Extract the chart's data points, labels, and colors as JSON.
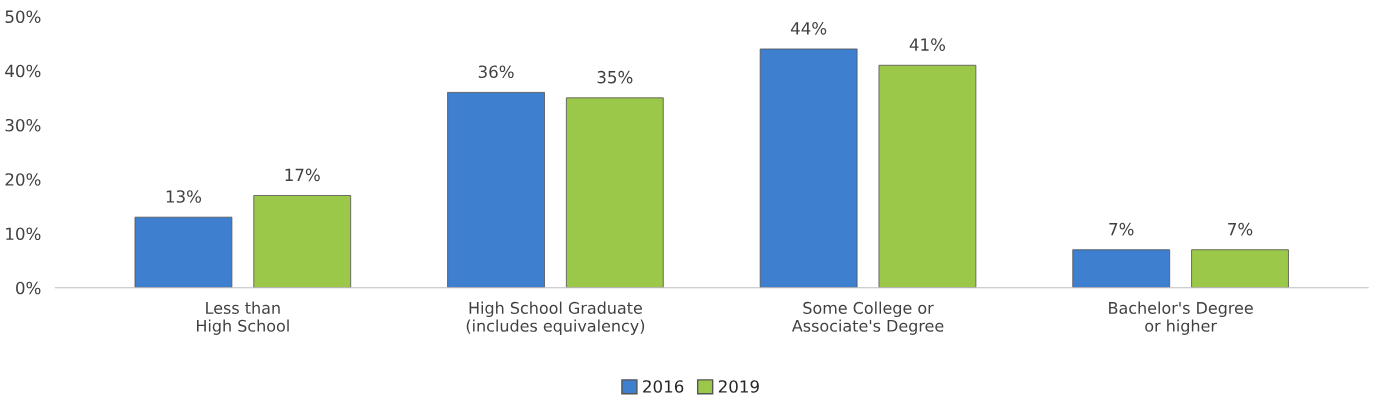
{
  "chart_data": {
    "type": "bar",
    "categories": [
      "Less than\nHigh School",
      "High School Graduate\n(includes equivalency)",
      "Some College or\nAssociate's Degree",
      "Bachelor's Degree\nor higher"
    ],
    "series": [
      {
        "name": "2016",
        "color": "#3f7fd0",
        "values": [
          13,
          36,
          44,
          7
        ],
        "value_labels": [
          "13%",
          "36%",
          "44%",
          "7%"
        ]
      },
      {
        "name": "2019",
        "color": "#9cc84a",
        "values": [
          17,
          35,
          41,
          7
        ],
        "value_labels": [
          "17%",
          "35%",
          "41%",
          "7%"
        ]
      }
    ],
    "ylim": [
      0,
      50
    ],
    "yticks": [
      {
        "value": 0,
        "label": "0%"
      },
      {
        "value": 10,
        "label": "10%"
      },
      {
        "value": 20,
        "label": "20%"
      },
      {
        "value": 30,
        "label": "30%"
      },
      {
        "value": 40,
        "label": "40%"
      },
      {
        "value": 50,
        "label": "50%"
      }
    ],
    "grid": false,
    "legend": "bottom"
  }
}
